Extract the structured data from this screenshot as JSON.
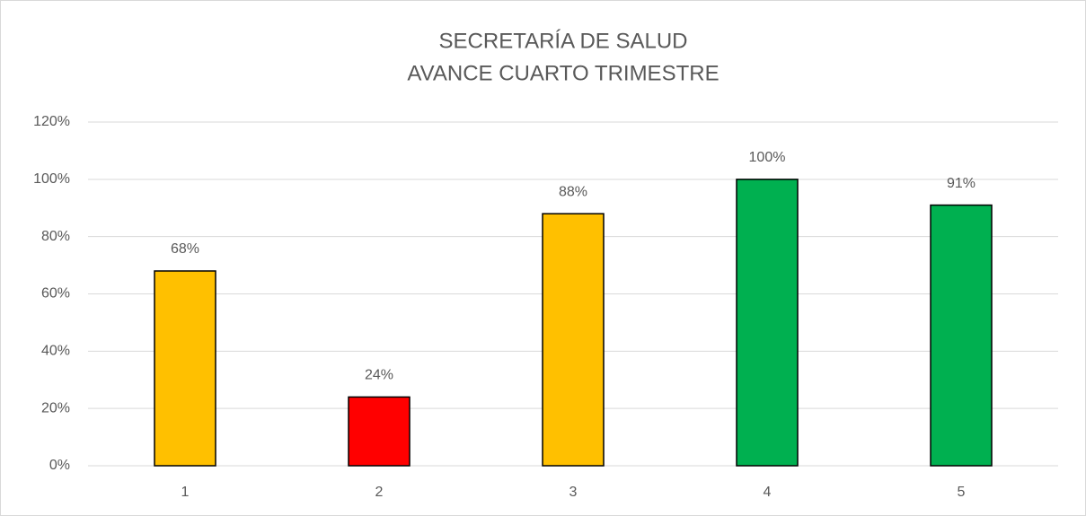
{
  "chart_data": {
    "type": "bar",
    "title": [
      "SECRETARÍA DE SALUD",
      "AVANCE CUARTO TRIMESTRE"
    ],
    "categories": [
      "1",
      "2",
      "3",
      "4",
      "5"
    ],
    "values": [
      68,
      24,
      88,
      100,
      91
    ],
    "value_labels": [
      "68%",
      "24%",
      "88%",
      "100%",
      "91%"
    ],
    "colors": [
      "#ffc000",
      "#ff0000",
      "#ffc000",
      "#00b050",
      "#00b050"
    ],
    "ylim": [
      0,
      120
    ],
    "yticks": [
      {
        "value": 0,
        "label": "0%"
      },
      {
        "value": 20,
        "label": "20%"
      },
      {
        "value": 40,
        "label": "40%"
      },
      {
        "value": 60,
        "label": "60%"
      },
      {
        "value": 80,
        "label": "80%"
      },
      {
        "value": 100,
        "label": "100%"
      },
      {
        "value": 120,
        "label": "120%"
      }
    ],
    "grid": true
  }
}
